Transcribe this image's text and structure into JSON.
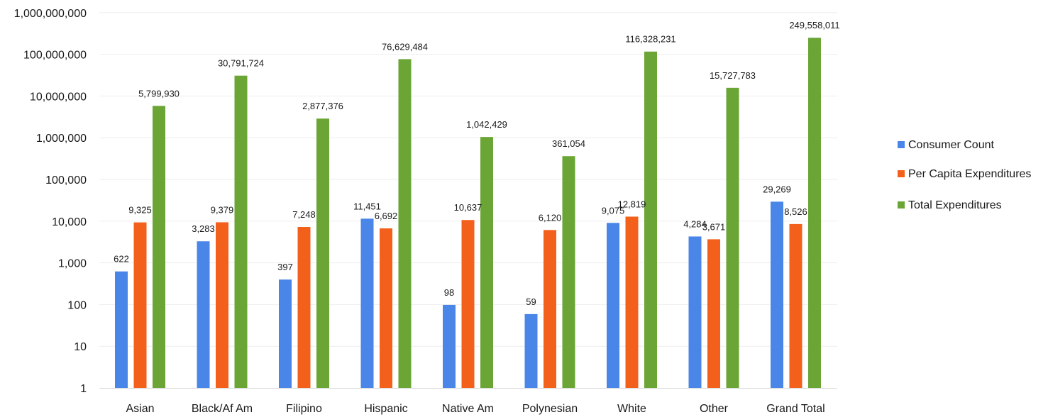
{
  "chart_data": {
    "type": "bar",
    "scale": "log",
    "ylim": [
      1,
      1000000000
    ],
    "yticks": [
      "1",
      "10",
      "100",
      "1,000",
      "10,000",
      "100,000",
      "1,000,000",
      "10,000,000",
      "100,000,000",
      "1,000,000,000"
    ],
    "categories": [
      "Asian",
      "Black/Af Am",
      "Filipino",
      "Hispanic",
      "Native Am",
      "Polynesian",
      "White",
      "Other",
      "Grand Total"
    ],
    "series": [
      {
        "name": "Consumer Count",
        "color": "#4a86e8",
        "values": [
          622,
          3283,
          397,
          11451,
          98,
          59,
          9075,
          4284,
          29269
        ],
        "labels": [
          "622",
          "3,283",
          "397",
          "11,451",
          "98",
          "59",
          "9,075",
          "4,284",
          "29,269"
        ]
      },
      {
        "name": "Per Capita Expenditures",
        "color": "#f2601b",
        "values": [
          9325,
          9379,
          7248,
          6692,
          10637,
          6120,
          12819,
          3671,
          8526
        ],
        "labels": [
          "9,325",
          "9,379",
          "7,248",
          "6,692",
          "10,637",
          "6,120",
          "12,819",
          "3,671",
          "8,526"
        ]
      },
      {
        "name": "Total Expenditures",
        "color": "#6aa535",
        "values": [
          5799930,
          30791724,
          2877376,
          76629484,
          1042429,
          361054,
          116328231,
          15727783,
          249558011
        ],
        "labels": [
          "5,799,930",
          "30,791,724",
          "2,877,376",
          "76,629,484",
          "1,042,429",
          "361,054",
          "116,328,231",
          "15,727,783",
          "249,558,011"
        ]
      }
    ],
    "grid": true,
    "legend_position": "right"
  }
}
